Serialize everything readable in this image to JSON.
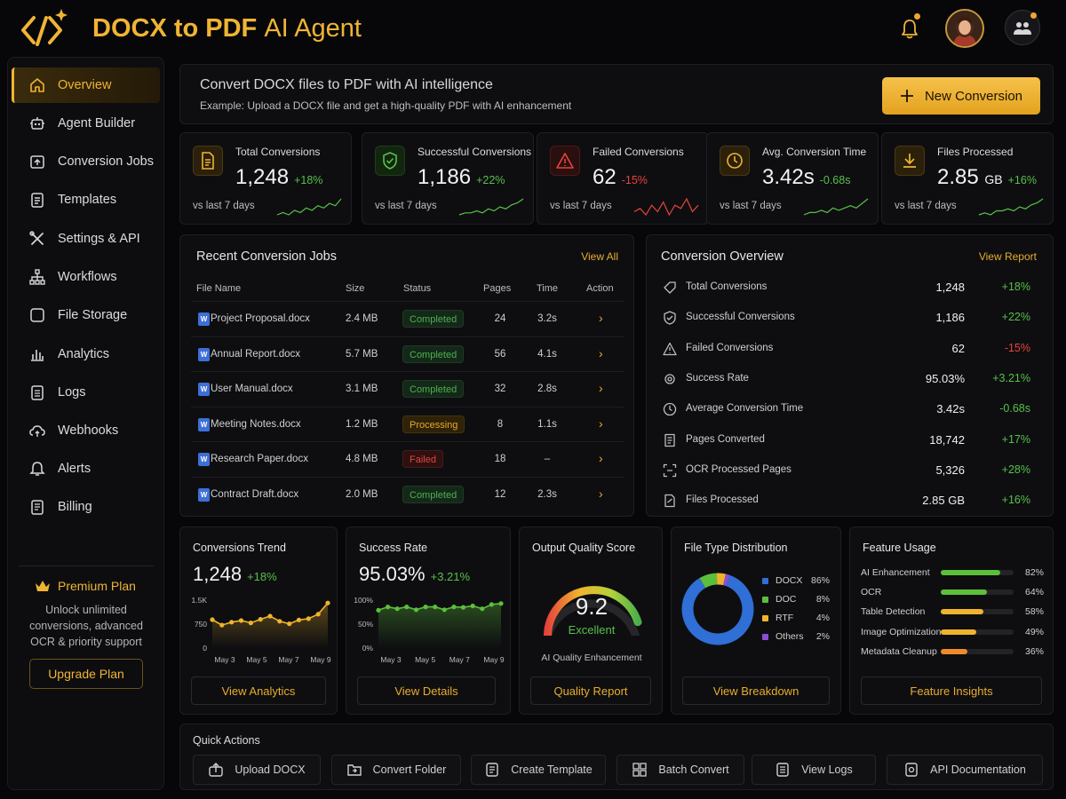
{
  "app": {
    "title_bold": "DOCX to PDF",
    "title_light": "AI Agent"
  },
  "sidebar": {
    "items": [
      {
        "label": "Overview",
        "icon": "home-icon",
        "active": true
      },
      {
        "label": "Agent Builder",
        "icon": "robot-icon"
      },
      {
        "label": "Conversion Jobs",
        "icon": "conversion-icon"
      },
      {
        "label": "Templates",
        "icon": "template-icon"
      },
      {
        "label": "Settings & API",
        "icon": "tools-icon"
      },
      {
        "label": "Workflows",
        "icon": "workflow-icon"
      },
      {
        "label": "File Storage",
        "icon": "storage-icon"
      },
      {
        "label": "Analytics",
        "icon": "analytics-icon"
      },
      {
        "label": "Logs",
        "icon": "logs-icon"
      },
      {
        "label": "Webhooks",
        "icon": "webhook-icon"
      },
      {
        "label": "Alerts",
        "icon": "bell-icon"
      },
      {
        "label": "Billing",
        "icon": "billing-icon"
      }
    ],
    "premium": {
      "title": "Premium Plan",
      "desc_lines": [
        "Unlock unlimited",
        "conversions, advanced",
        "OCR & priority support"
      ],
      "button": "Upgrade Plan"
    }
  },
  "banner": {
    "title": "Convert DOCX files to PDF with AI intelligence",
    "subtitle": "Example: Upload a DOCX file and get a high-quality PDF with AI enhancement",
    "button": "New Conversion"
  },
  "stats": [
    {
      "label": "Total Conversions",
      "value": "1,248",
      "unit": "",
      "change": "+18%",
      "trend": "up",
      "sub": "vs last 7 days",
      "spark": [
        5,
        6,
        5,
        7,
        6,
        8,
        7,
        9,
        8,
        10,
        9,
        12
      ]
    },
    {
      "label": "Successful Conversions",
      "value": "1,186",
      "unit": "",
      "change": "+22%",
      "trend": "up",
      "sub": "vs last 7 days",
      "spark": [
        4,
        5,
        5,
        6,
        5,
        7,
        6,
        8,
        7,
        9,
        10,
        12
      ]
    },
    {
      "label": "Failed Conversions",
      "value": "62",
      "unit": "",
      "change": "-15%",
      "trend": "down",
      "sub": "vs last 7 days",
      "spark": [
        6,
        7,
        5,
        8,
        6,
        9,
        5,
        8,
        7,
        10,
        6,
        8
      ]
    },
    {
      "label": "Avg. Conversion Time",
      "value": "3.42s",
      "unit": "",
      "change": "-0.68s",
      "trend": "up",
      "sub": "vs last 7 days",
      "spark": [
        4,
        5,
        5,
        6,
        5,
        7,
        6,
        7,
        8,
        7,
        9,
        11
      ]
    },
    {
      "label": "Files Processed",
      "value": "2.85",
      "unit": "GB",
      "change": "+16%",
      "trend": "up",
      "sub": "vs last 7 days",
      "spark": [
        4,
        5,
        4,
        6,
        6,
        7,
        6,
        8,
        7,
        9,
        10,
        12
      ]
    }
  ],
  "jobs": {
    "title": "Recent Conversion Jobs",
    "link": "View All",
    "headers": [
      "File Name",
      "Size",
      "Status",
      "Pages",
      "Time",
      "Action"
    ],
    "rows": [
      {
        "name": "Project Proposal.docx",
        "size": "2.4 MB",
        "status": "Completed",
        "pages": "24",
        "time": "3.2s"
      },
      {
        "name": "Annual Report.docx",
        "size": "5.7 MB",
        "status": "Completed",
        "pages": "56",
        "time": "4.1s"
      },
      {
        "name": "User Manual.docx",
        "size": "3.1 MB",
        "status": "Completed",
        "pages": "32",
        "time": "2.8s"
      },
      {
        "name": "Meeting Notes.docx",
        "size": "1.2 MB",
        "status": "Processing",
        "pages": "8",
        "time": "1.1s"
      },
      {
        "name": "Research Paper.docx",
        "size": "4.8 MB",
        "status": "Failed",
        "pages": "18",
        "time": "–"
      },
      {
        "name": "Contract Draft.docx",
        "size": "2.0 MB",
        "status": "Completed",
        "pages": "12",
        "time": "2.3s"
      }
    ]
  },
  "overview": {
    "title": "Conversion Overview",
    "link": "View Report",
    "rows": [
      {
        "label": "Total Conversions",
        "value": "1,248",
        "change": "+18%",
        "trend": "up",
        "icon": "tag-icon"
      },
      {
        "label": "Successful Conversions",
        "value": "1,186",
        "change": "+22%",
        "trend": "up",
        "icon": "shield-check-icon"
      },
      {
        "label": "Failed Conversions",
        "value": "62",
        "change": "-15%",
        "trend": "down",
        "icon": "warning-icon"
      },
      {
        "label": "Success Rate",
        "value": "95.03%",
        "change": "+3.21%",
        "trend": "up",
        "icon": "gear-icon"
      },
      {
        "label": "Average Conversion Time",
        "value": "3.42s",
        "change": "-0.68s",
        "trend": "up",
        "icon": "clock-icon"
      },
      {
        "label": "Pages Converted",
        "value": "18,742",
        "change": "+17%",
        "trend": "up",
        "icon": "pages-icon"
      },
      {
        "label": "OCR Processed Pages",
        "value": "5,326",
        "change": "+28%",
        "trend": "up",
        "icon": "ocr-scan-icon"
      },
      {
        "label": "Files Processed",
        "value": "2.85 GB",
        "change": "+16%",
        "trend": "up",
        "icon": "file-icon"
      }
    ]
  },
  "trend_card": {
    "title": "Conversions Trend",
    "value": "1,248",
    "change": "+18%",
    "button": "View Analytics"
  },
  "success_card": {
    "title": "Success Rate",
    "value": "95.03%",
    "change": "+3.21%",
    "button": "View Details"
  },
  "quality_card": {
    "title": "Output Quality Score",
    "score": "9.2",
    "score_max": 10,
    "rating": "Excellent",
    "caption": "AI Quality Enhancement",
    "button": "Quality Report"
  },
  "filetype_card": {
    "title": "File Type Distribution",
    "button": "View Breakdown"
  },
  "feature_card": {
    "title": "Feature Usage",
    "button": "Feature Insights",
    "items": [
      {
        "label": "AI Enhancement",
        "pct_label": "82%",
        "value": 82,
        "color": "#5cbf3c"
      },
      {
        "label": "OCR",
        "pct_label": "64%",
        "value": 64,
        "color": "#5cbf3c"
      },
      {
        "label": "Table Detection",
        "pct_label": "58%",
        "value": 58,
        "color": "#f0b42c"
      },
      {
        "label": "Image Optimization",
        "pct_label": "49%",
        "value": 49,
        "color": "#f0b42c"
      },
      {
        "label": "Metadata Cleanup",
        "pct_label": "36%",
        "value": 36,
        "color": "#f08a2c"
      }
    ]
  },
  "chart_data": [
    {
      "type": "line",
      "title": "Conversions Trend",
      "x_ticks": [
        "May 3",
        "May 5",
        "May 7",
        "May 9"
      ],
      "yticks": [
        "1.5K",
        "750",
        "0"
      ],
      "ylim": [
        0,
        1500
      ],
      "series": [
        {
          "values": [
            890,
            720,
            810,
            860,
            790,
            900,
            1000,
            840,
            760,
            880,
            920,
            1060,
            1410
          ],
          "color": "#f0b42c"
        }
      ]
    },
    {
      "type": "line",
      "title": "Success Rate",
      "x_ticks": [
        "May 3",
        "May 5",
        "May 7",
        "May 9"
      ],
      "yticks": [
        "100%",
        "50%",
        "0%"
      ],
      "ylim": [
        0,
        100
      ],
      "series": [
        {
          "values": [
            79,
            86,
            82,
            86,
            80,
            86,
            86,
            80,
            86,
            85,
            88,
            82,
            91,
            93
          ],
          "color": "#5cbf3c"
        }
      ]
    },
    {
      "type": "pie",
      "title": "File Type Distribution",
      "slices": [
        {
          "name": "DOCX",
          "pct": "86%",
          "value": 86,
          "color": "#2f6fd6"
        },
        {
          "name": "DOC",
          "pct": "8%",
          "value": 8,
          "color": "#5cbf3c"
        },
        {
          "name": "RTF",
          "pct": "4%",
          "value": 4,
          "color": "#f0b42c"
        },
        {
          "name": "Others",
          "pct": "2%",
          "value": 2,
          "color": "#8a4fd6"
        }
      ]
    }
  ],
  "quick_actions": {
    "title": "Quick Actions",
    "items": [
      {
        "label": "Upload DOCX",
        "icon": "upload-icon"
      },
      {
        "label": "Convert Folder",
        "icon": "folder-icon"
      },
      {
        "label": "Create Template",
        "icon": "template-icon"
      },
      {
        "label": "Batch Convert",
        "icon": "batch-icon"
      },
      {
        "label": "View Logs",
        "icon": "logs-icon"
      },
      {
        "label": "API Documentation",
        "icon": "api-doc-icon"
      }
    ]
  },
  "colors": {
    "accent": "#f0b434",
    "up": "#57c04a",
    "down": "#e5453b",
    "background": "#07070a",
    "panel": "#0e0e11"
  }
}
